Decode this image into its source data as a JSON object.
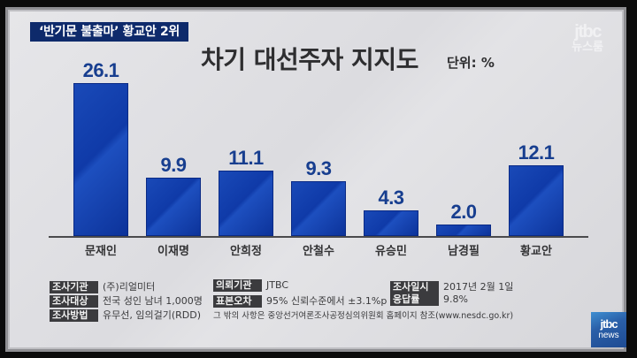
{
  "headline": "‘반기문 불출마’ 황교안 2위",
  "brand": {
    "top_logo": "jtbc",
    "top_logo_sub": "뉴스룸",
    "bottom_logo": "jtbc",
    "bottom_logo_sub": "news"
  },
  "chart_title": "차기 대선주자 지지도",
  "unit_label": "단위: %",
  "chart_data": {
    "type": "bar",
    "title": "차기 대선주자 지지도",
    "unit": "%",
    "xlabel": "",
    "ylabel": "",
    "categories": [
      "문재인",
      "이재명",
      "안희정",
      "안철수",
      "유승민",
      "남경필",
      "황교안"
    ],
    "values": [
      26.1,
      9.9,
      11.1,
      9.3,
      4.3,
      2.0,
      12.1
    ],
    "value_labels": [
      "26.1",
      "9.9",
      "11.1",
      "9.3",
      "4.3",
      "2.0",
      "12.1"
    ],
    "grid": false,
    "legend": "none",
    "bar_color": "#1441b0",
    "label_color": "#173e8f"
  },
  "survey": {
    "org": {
      "tag": "조사기관",
      "value": "(주)리얼미터"
    },
    "target": {
      "tag": "조사대상",
      "value": "전국 성인 남녀 1,000명"
    },
    "method": {
      "tag": "조사방법",
      "value": "유무선, 임의걸기(RDD)"
    },
    "client": {
      "tag": "의뢰기관",
      "value": "JTBC"
    },
    "error": {
      "tag": "표본오차",
      "value": "95% 신뢰수준에서 ±3.1%p"
    },
    "date": {
      "tag": "조사일시",
      "value": "2017년 2월 1일"
    },
    "response": {
      "tag": "응답률",
      "value": "9.8%"
    },
    "footnote": "그 밖의 사항은 중앙선거여론조사공정심의위원회 홈페이지 참조(www.nesdc.go.kr)"
  }
}
